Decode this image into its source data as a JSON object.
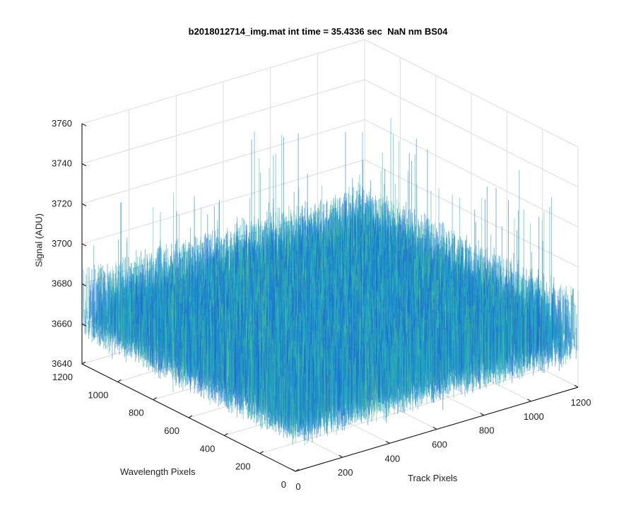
{
  "chart_data": {
    "type": "surface",
    "title": "b2018012714_img.mat int time = 35.4336 sec  NaN nm BS04",
    "xlabel": "Track Pixels",
    "ylabel": "Wavelength Pixels",
    "zlabel": "Signal (ADU)",
    "xlim": [
      0,
      1200
    ],
    "ylim": [
      0,
      1200
    ],
    "zlim": [
      3640,
      3760
    ],
    "x_ticks": [
      "0",
      "200",
      "400",
      "600",
      "800",
      "1000",
      "1200"
    ],
    "y_ticks": [
      "0",
      "200",
      "400",
      "600",
      "800",
      "1000",
      "1200"
    ],
    "z_ticks": [
      "3640",
      "3660",
      "3680",
      "3700",
      "3720",
      "3740",
      "3760"
    ],
    "data_extent": {
      "x": [
        0,
        1200
      ],
      "y": [
        0,
        1200
      ]
    },
    "signal_mean": 3670,
    "signal_range": [
      3648,
      3735
    ],
    "colormap": [
      "#1f6fd0",
      "#1ca0d6",
      "#21b3b4",
      "#52c38c"
    ],
    "grid": true
  }
}
